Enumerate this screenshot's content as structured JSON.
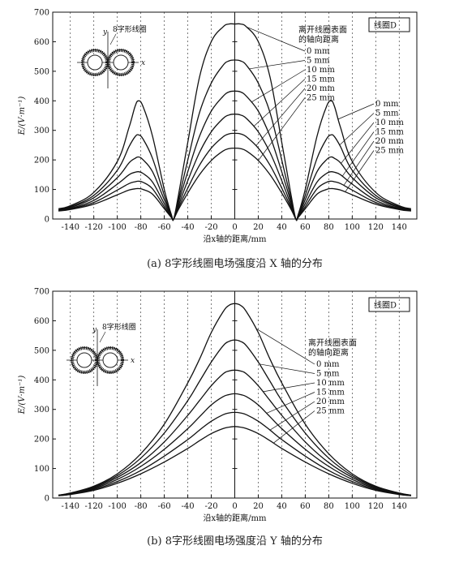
{
  "chart_data": [
    {
      "type": "line",
      "xlabel": "沿x轴的距离/mm",
      "ylabel": "E/(V·m⁻¹)",
      "xlim": [
        -155,
        155
      ],
      "ylim": [
        0,
        700
      ],
      "x_ticks": [
        -140,
        -120,
        -100,
        -80,
        -60,
        -40,
        -20,
        0,
        20,
        40,
        60,
        80,
        100,
        120,
        140
      ],
      "y_ticks": [
        0,
        100,
        200,
        300,
        400,
        500,
        600,
        700
      ],
      "grid": "vertical dotted",
      "box_label": "线圈D",
      "legend_title": [
        "离开线圈表面",
        "的轴向距离"
      ],
      "legend_entries": [
        "0 mm",
        "5 mm",
        "10 mm",
        "15 mm",
        "20 mm",
        "25 mm"
      ],
      "side_entries": [
        "0 mm",
        "5 mm",
        "10 mm",
        "15 mm",
        "20 mm",
        "25 mm"
      ],
      "coil_label": "8字形线圈",
      "coil_axes": [
        "y",
        "x"
      ],
      "caption": "(a) 8字形线圈电场强度沿 X 轴的分布",
      "series": [
        {
          "name": "0 mm",
          "x": [
            -150,
            -140,
            -120,
            -100,
            -90,
            -85,
            -82,
            -78,
            -70,
            -60,
            -54,
            -52,
            -48,
            -40,
            -30,
            -20,
            -10,
            -5,
            0,
            5,
            10,
            20,
            30,
            40,
            48,
            52,
            54,
            60,
            70,
            78,
            82,
            85,
            90,
            100,
            120,
            140,
            150
          ],
          "y": [
            35,
            45,
            90,
            195,
            310,
            380,
            400,
            380,
            280,
            100,
            15,
            0,
            80,
            260,
            480,
            600,
            650,
            660,
            660,
            660,
            650,
            600,
            480,
            260,
            80,
            0,
            15,
            100,
            280,
            380,
            400,
            380,
            310,
            195,
            90,
            45,
            35
          ]
        },
        {
          "name": "5 mm",
          "x": [
            -150,
            -140,
            -120,
            -100,
            -90,
            -85,
            -82,
            -78,
            -70,
            -60,
            -54,
            -52,
            -48,
            -40,
            -30,
            -20,
            -10,
            -5,
            0,
            5,
            10,
            20,
            30,
            40,
            48,
            52,
            54,
            60,
            70,
            78,
            82,
            85,
            90,
            100,
            120,
            140,
            150
          ],
          "y": [
            33,
            42,
            80,
            165,
            245,
            278,
            285,
            270,
            205,
            80,
            12,
            0,
            65,
            200,
            360,
            460,
            520,
            535,
            538,
            535,
            520,
            460,
            360,
            200,
            65,
            0,
            12,
            80,
            205,
            270,
            285,
            278,
            245,
            165,
            80,
            42,
            33
          ]
        },
        {
          "name": "10 mm",
          "x": [
            -150,
            -140,
            -120,
            -100,
            -90,
            -85,
            -82,
            -78,
            -70,
            -60,
            -54,
            -52,
            -48,
            -40,
            -30,
            -20,
            -10,
            -5,
            0,
            5,
            10,
            20,
            30,
            40,
            48,
            52,
            54,
            60,
            70,
            78,
            82,
            85,
            90,
            100,
            120,
            140,
            150
          ],
          "y": [
            31,
            39,
            72,
            140,
            190,
            205,
            210,
            200,
            160,
            65,
            10,
            0,
            55,
            160,
            280,
            365,
            415,
            430,
            433,
            430,
            415,
            365,
            280,
            160,
            55,
            0,
            10,
            65,
            160,
            200,
            210,
            205,
            190,
            140,
            72,
            39,
            31
          ]
        },
        {
          "name": "15 mm",
          "x": [
            -150,
            -140,
            -120,
            -100,
            -90,
            -85,
            -82,
            -78,
            -70,
            -60,
            -54,
            -52,
            -48,
            -40,
            -30,
            -20,
            -10,
            -5,
            0,
            5,
            10,
            20,
            30,
            40,
            48,
            52,
            54,
            60,
            70,
            78,
            82,
            85,
            90,
            100,
            120,
            140,
            150
          ],
          "y": [
            29,
            36,
            63,
            118,
            150,
            158,
            160,
            154,
            125,
            52,
            8,
            0,
            45,
            130,
            225,
            295,
            340,
            352,
            355,
            352,
            340,
            295,
            225,
            130,
            45,
            0,
            8,
            52,
            125,
            154,
            160,
            158,
            150,
            118,
            63,
            36,
            29
          ]
        },
        {
          "name": "20 mm",
          "x": [
            -150,
            -140,
            -120,
            -100,
            -90,
            -85,
            -82,
            -78,
            -70,
            -60,
            -54,
            -52,
            -48,
            -40,
            -30,
            -20,
            -10,
            -5,
            0,
            5,
            10,
            20,
            30,
            40,
            48,
            52,
            54,
            60,
            70,
            78,
            82,
            85,
            90,
            100,
            120,
            140,
            150
          ],
          "y": [
            28,
            34,
            56,
            98,
            120,
            126,
            128,
            124,
            102,
            42,
            6,
            0,
            38,
            105,
            182,
            240,
            278,
            288,
            290,
            288,
            278,
            240,
            182,
            105,
            38,
            0,
            6,
            42,
            102,
            124,
            128,
            126,
            120,
            98,
            56,
            34,
            28
          ]
        },
        {
          "name": "25 mm",
          "x": [
            -150,
            -140,
            -120,
            -100,
            -90,
            -85,
            -82,
            -78,
            -70,
            -60,
            -54,
            -52,
            -48,
            -40,
            -30,
            -20,
            -10,
            -5,
            0,
            5,
            10,
            20,
            30,
            40,
            48,
            52,
            54,
            60,
            70,
            78,
            82,
            85,
            90,
            100,
            120,
            140,
            150
          ],
          "y": [
            27,
            32,
            50,
            82,
            98,
            102,
            103,
            100,
            84,
            35,
            5,
            0,
            32,
            88,
            150,
            198,
            230,
            238,
            240,
            238,
            230,
            198,
            150,
            88,
            32,
            0,
            5,
            35,
            84,
            100,
            103,
            102,
            98,
            82,
            50,
            32,
            27
          ]
        }
      ]
    },
    {
      "type": "line",
      "xlabel": "沿x轴的距离/mm",
      "ylabel": "E/(V·m⁻¹)",
      "xlim": [
        -155,
        155
      ],
      "ylim": [
        0,
        700
      ],
      "x_ticks": [
        -140,
        -120,
        -100,
        -80,
        -60,
        -40,
        -20,
        0,
        20,
        40,
        60,
        80,
        100,
        120,
        140
      ],
      "y_ticks": [
        0,
        100,
        200,
        300,
        400,
        500,
        600,
        700
      ],
      "grid": "vertical dotted",
      "box_label": "线圈D",
      "legend_title": [
        "离开线圈表面",
        "的轴向距离"
      ],
      "legend_entries": [
        "0 mm",
        "5 mm",
        "10 mm",
        "15 mm",
        "20 mm",
        "25 mm"
      ],
      "coil_label": "8字形线圈",
      "coil_axes": [
        "y",
        "x"
      ],
      "caption": "(b) 8字形线圈电场强度沿 Y 轴的分布",
      "series": [
        {
          "name": "0 mm",
          "x": [
            -150,
            -140,
            -120,
            -100,
            -80,
            -60,
            -40,
            -30,
            -20,
            -10,
            -5,
            0,
            5,
            10,
            20,
            30,
            40,
            60,
            80,
            100,
            120,
            140,
            150
          ],
          "y": [
            10,
            17,
            40,
            82,
            150,
            250,
            390,
            470,
            560,
            630,
            652,
            658,
            652,
            630,
            560,
            470,
            390,
            250,
            150,
            82,
            40,
            17,
            10
          ]
        },
        {
          "name": "5 mm",
          "x": [
            -150,
            -140,
            -120,
            -100,
            -80,
            -60,
            -40,
            -30,
            -20,
            -10,
            -5,
            0,
            5,
            10,
            20,
            30,
            40,
            60,
            80,
            100,
            120,
            140,
            150
          ],
          "y": [
            10,
            16,
            38,
            76,
            135,
            220,
            330,
            395,
            460,
            515,
            530,
            535,
            530,
            515,
            460,
            395,
            330,
            220,
            135,
            76,
            38,
            16,
            10
          ]
        },
        {
          "name": "10 mm",
          "x": [
            -150,
            -140,
            -120,
            -100,
            -80,
            -60,
            -40,
            -30,
            -20,
            -10,
            -5,
            0,
            5,
            10,
            20,
            30,
            40,
            60,
            80,
            100,
            120,
            140,
            150
          ],
          "y": [
            9,
            15,
            35,
            70,
            120,
            190,
            280,
            330,
            380,
            420,
            430,
            433,
            430,
            420,
            380,
            330,
            280,
            190,
            120,
            70,
            35,
            15,
            9
          ]
        },
        {
          "name": "15 mm",
          "x": [
            -150,
            -140,
            -120,
            -100,
            -80,
            -60,
            -40,
            -30,
            -20,
            -10,
            -5,
            0,
            5,
            10,
            20,
            30,
            40,
            60,
            80,
            100,
            120,
            140,
            150
          ],
          "y": [
            9,
            14,
            32,
            63,
            107,
            165,
            235,
            275,
            315,
            343,
            350,
            353,
            350,
            343,
            315,
            275,
            235,
            165,
            107,
            63,
            32,
            14,
            9
          ]
        },
        {
          "name": "20 mm",
          "x": [
            -150,
            -140,
            -120,
            -100,
            -80,
            -60,
            -40,
            -30,
            -20,
            -10,
            -5,
            0,
            5,
            10,
            20,
            30,
            40,
            60,
            80,
            100,
            120,
            140,
            150
          ],
          "y": [
            8,
            13,
            29,
            56,
            93,
            142,
            198,
            230,
            260,
            282,
            288,
            290,
            288,
            282,
            260,
            230,
            198,
            142,
            93,
            56,
            29,
            13,
            8
          ]
        },
        {
          "name": "25 mm",
          "x": [
            -150,
            -140,
            -120,
            -100,
            -80,
            -60,
            -40,
            -30,
            -20,
            -10,
            -5,
            0,
            5,
            10,
            20,
            30,
            40,
            60,
            80,
            100,
            120,
            140,
            150
          ],
          "y": [
            8,
            12,
            26,
            50,
            82,
            122,
            168,
            194,
            218,
            235,
            240,
            242,
            240,
            235,
            218,
            194,
            168,
            122,
            82,
            50,
            26,
            12,
            8
          ]
        }
      ]
    }
  ]
}
